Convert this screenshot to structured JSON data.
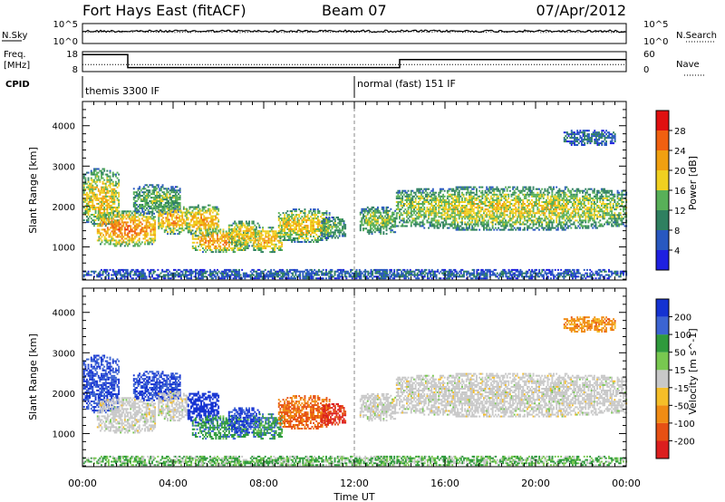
{
  "header": {
    "station": "Fort Hays East (fitACF)",
    "beam": "Beam 07",
    "date": "07/Apr/2012"
  },
  "colors": {
    "power": [
      "#1e20e0",
      "#2858c0",
      "#2f8060",
      "#58b058",
      "#f0d020",
      "#f0a010",
      "#f06010",
      "#e01010"
    ],
    "velocity": [
      "#1432d2",
      "#3c64d2",
      "#2f9a3c",
      "#78c850",
      "#c8c8c8",
      "#f5be28",
      "#f08c14",
      "#e65014",
      "#dc1e1e"
    ],
    "ground_scatter": "#c8c8c8"
  },
  "chart_data": [
    {
      "type": "line",
      "panel": "noise",
      "left_labels": [
        "N.Sky"
      ],
      "right_labels": [
        "N.Search"
      ],
      "yticks_left": [
        "10^5",
        "10^0"
      ],
      "yticks_right": [
        "10^5",
        "10^0"
      ],
      "series": [
        {
          "style": "solid",
          "level": 0.62
        },
        {
          "style": "dotted",
          "level": 0.58
        }
      ]
    },
    {
      "type": "line",
      "panel": "frequency",
      "left_labels": [
        "Freq.",
        "[MHz]"
      ],
      "right_labels": [
        "Nave"
      ],
      "yticks_left": [
        "18",
        "8"
      ],
      "yticks_right": [
        "60",
        "0"
      ],
      "freq_steps": [
        {
          "start": 0.0,
          "end": 2.0,
          "value": 16.5
        },
        {
          "start": 2.0,
          "end": 14.0,
          "value": 10.0
        },
        {
          "start": 14.0,
          "end": 24.0,
          "value": 14.0
        }
      ],
      "nave_level": 0.35
    },
    {
      "type": "table",
      "panel": "cpid",
      "label": "CPID",
      "segments": [
        {
          "start": 0.0,
          "text": "themis 3300 IF"
        },
        {
          "start": 12.0,
          "text": "normal (fast) 151 IF"
        }
      ]
    },
    {
      "type": "heatmap",
      "panel": "power",
      "ylabel": "Slant Range [km]",
      "ylim": [
        180,
        4600
      ],
      "yticks": [
        1000,
        2000,
        3000,
        4000
      ],
      "xlim": [
        0,
        24
      ],
      "colorbar": {
        "label": "Power [dB]",
        "ticks": [
          "4",
          "8",
          "12",
          "16",
          "20",
          "24",
          "28"
        ],
        "boundaries": [
          0,
          4,
          8,
          12,
          16,
          20,
          24,
          28,
          32
        ]
      }
    },
    {
      "type": "heatmap",
      "panel": "velocity",
      "ylabel": "Slant Range [km]",
      "ylim": [
        180,
        4600
      ],
      "yticks": [
        1000,
        2000,
        3000,
        4000
      ],
      "xlim": [
        0,
        24
      ],
      "xlabel": "Time UT",
      "xticks": [
        "00:00",
        "04:00",
        "08:00",
        "12:00",
        "16:00",
        "20:00",
        "00:00"
      ],
      "xtick_values": [
        0,
        4,
        8,
        12,
        16,
        20,
        24
      ],
      "colorbar": {
        "label": "Velocity [m s^-1]",
        "ticks": [
          "200",
          "100",
          "50",
          "15",
          "-15",
          "-50",
          "-100",
          "-200"
        ]
      }
    }
  ],
  "scatter_regions": [
    {
      "t0": 0.0,
      "t1": 1.6,
      "r0": 1500,
      "r1": 2950,
      "p": 20,
      "v": 150
    },
    {
      "t0": 0.6,
      "t1": 3.2,
      "r0": 1000,
      "r1": 1900,
      "p": 25,
      "v": 0
    },
    {
      "t0": 2.2,
      "t1": 4.3,
      "r0": 1800,
      "r1": 2550,
      "p": 14,
      "v": 150
    },
    {
      "t0": 3.3,
      "t1": 4.6,
      "r0": 1300,
      "r1": 2050,
      "p": 22,
      "v": 0
    },
    {
      "t0": 4.6,
      "t1": 6.0,
      "r0": 1250,
      "r1": 2050,
      "p": 22,
      "v": 180
    },
    {
      "t0": 4.8,
      "t1": 7.3,
      "r0": 850,
      "r1": 1450,
      "p": 23,
      "v": 60
    },
    {
      "t0": 6.4,
      "t1": 7.8,
      "r0": 1000,
      "r1": 1650,
      "p": 20,
      "v": 160
    },
    {
      "t0": 7.5,
      "t1": 8.8,
      "r0": 850,
      "r1": 1500,
      "p": 22,
      "v": 60
    },
    {
      "t0": 8.6,
      "t1": 10.9,
      "r0": 1100,
      "r1": 1950,
      "p": 20,
      "v": -80
    },
    {
      "t0": 10.5,
      "t1": 11.6,
      "r0": 1200,
      "r1": 1750,
      "p": 14,
      "v": -160
    },
    {
      "t0": 12.2,
      "t1": 13.8,
      "r0": 1300,
      "r1": 2000,
      "p": 16,
      "v": 0
    },
    {
      "t0": 13.8,
      "t1": 24.0,
      "r0": 1400,
      "r1": 2500,
      "p": 18,
      "v": 0
    },
    {
      "t0": 21.2,
      "t1": 23.5,
      "r0": 3500,
      "r1": 3900,
      "p": 8,
      "v": -50
    },
    {
      "t0": 0.0,
      "t1": 24.0,
      "r0": 200,
      "r1": 450,
      "p": 8,
      "v": 30
    }
  ]
}
